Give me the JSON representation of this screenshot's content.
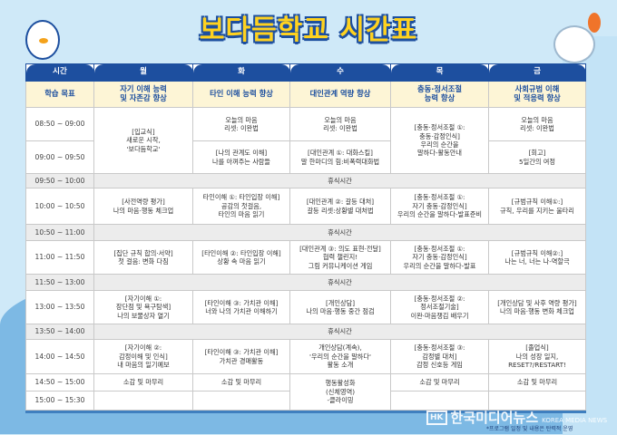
{
  "title": "보다듬학교 시간표",
  "header": [
    "시간",
    "월",
    "화",
    "수",
    "목",
    "금"
  ],
  "goals": {
    "label": "학습 목표",
    "mon": "자기 이해 능력\n및 자존감 향상",
    "tue": "타인 이해 능력 향상",
    "wed": "대인관계 역량 향상",
    "thu": "충동·정서조절\n능력 향상",
    "fri": "사회규범 이해\n및 적응력 향상"
  },
  "break_label": "휴식시간",
  "rows": {
    "r0850": {
      "time": "08:50 ~ 09:00",
      "tue": "오늘의 마음\n리셋: 이완법",
      "wed": "오늘의 마음\n리셋: 이완법",
      "fri": "오늘의 마음\n리셋: 이완법"
    },
    "mon_merged": "[입교식]\n새로운 시작,\n'보다듬학교'",
    "thu_merged": "[충동·정서조절 ①:\n충동·감정인식]\n우리의 순간을\n말하다-활동안내",
    "r0900": {
      "time": "09:00 ~ 09:50",
      "tue": "[나의 관계도 이해]\n나를 아껴주는 사람들",
      "wed": "[대인관계 ①: 대화스킬]\n말 한마디의 힘:비폭력대화법",
      "fri": "[회고]\n5일간의 여정"
    },
    "b0950": {
      "time": "09:50 ~ 10:00"
    },
    "r1000": {
      "time": "10:00 ~ 10:50",
      "mon": "[사전역량 평가]\n나의 마음·행동 체크업",
      "tue": "타인이해 ①: 타인입장 이해]\n공감의 첫걸음,\n타인의 마음 읽기",
      "wed": "[대인관계 ②: 갈등 대처]\n갈등 리셋:상황별 대처법",
      "thu": "[충동·정서조절 ①:\n자기 충동·감정인식]\n우리의 순간을 말하다-발표준비",
      "fri": "[규범규칙 이해①:]\n규칙, 우리를 지키는 울타리"
    },
    "b1050": {
      "time": "10:50 ~ 11:00"
    },
    "r1100": {
      "time": "11:00 ~ 11:50",
      "mon": "[집단 규칙 합의·서약]\n첫 걸음: 변화 다짐",
      "tue": "[타인이해 ②: 타인입장 이해]\n상황 속 마음 읽기",
      "wed": "[대인관계 ③: 의도 표현·전달]\n협력 챌린지!\n그림 커뮤니케이션 게임",
      "thu": "[충동·정서조절 ①:\n자기 충동·감정인식]\n우리의 순간을 말하다-발표",
      "fri": "[규범규칙 이해②:]\n나는 너, 너는 나-역할극"
    },
    "b1150": {
      "time": "11:50 ~ 13:00"
    },
    "r1300": {
      "time": "13:00 ~ 13:50",
      "mon": "[자기이해 ①:\n장단점 및 욕구탐색]\n나의 보물상자 열기",
      "tue": "[타인이해 ③: 가치관 이해]\n너와 나의 가치관 이해하기",
      "wed": "[개인상담]\n나의 마음·행동 중간 점검",
      "thu": "[충동·정서조절 ②:\n정서조절기술]\n이완·마음챙김 배우기",
      "fri": "[개인상담 및 사후 역량 평가]\n나의 마음·행동 변화 체크업"
    },
    "b1350": {
      "time": "13:50 ~ 14:00"
    },
    "r1400": {
      "time": "14:00 ~ 14:50",
      "mon": "[자기이해 ②:\n감정이해 및 인식]\n내 마음의 일기예보",
      "tue": "[타인이해 ③: 가치관 이해]\n가치관 경매활동",
      "wed": "개인상담(계속),\n'우리의 순간을 말하다'\n활동 소개",
      "thu": "[충동·정서조절 ③:\n감정별 대처]\n감정 신호등 게임",
      "fri": "[졸업식]\n나의 성장 일지,\nRESET?/RESTART!"
    },
    "r1450": {
      "time": "14:50 ~ 15:00",
      "mon": "소감 및 마무리",
      "tue": "소감 및 마무리",
      "thu": "소감 및 마무리",
      "fri": "소감 및 마무리"
    },
    "wed_merged_end": "행동활성화\n(신체영역)\n-클라이밍",
    "r1500": {
      "time": "15:00 ~ 15:30"
    }
  },
  "watermark": {
    "mark": "HK",
    "name": "한국미디어뉴스",
    "sub": "KOREA MEDIA NEWS"
  },
  "note": "*프로그램 일정 및 내용은 탄력적 운영",
  "colors": {
    "header": "#1d4f9f",
    "goal_bg": "#fdf5d6",
    "break_bg": "#ececec",
    "title": "#ffd21f"
  }
}
